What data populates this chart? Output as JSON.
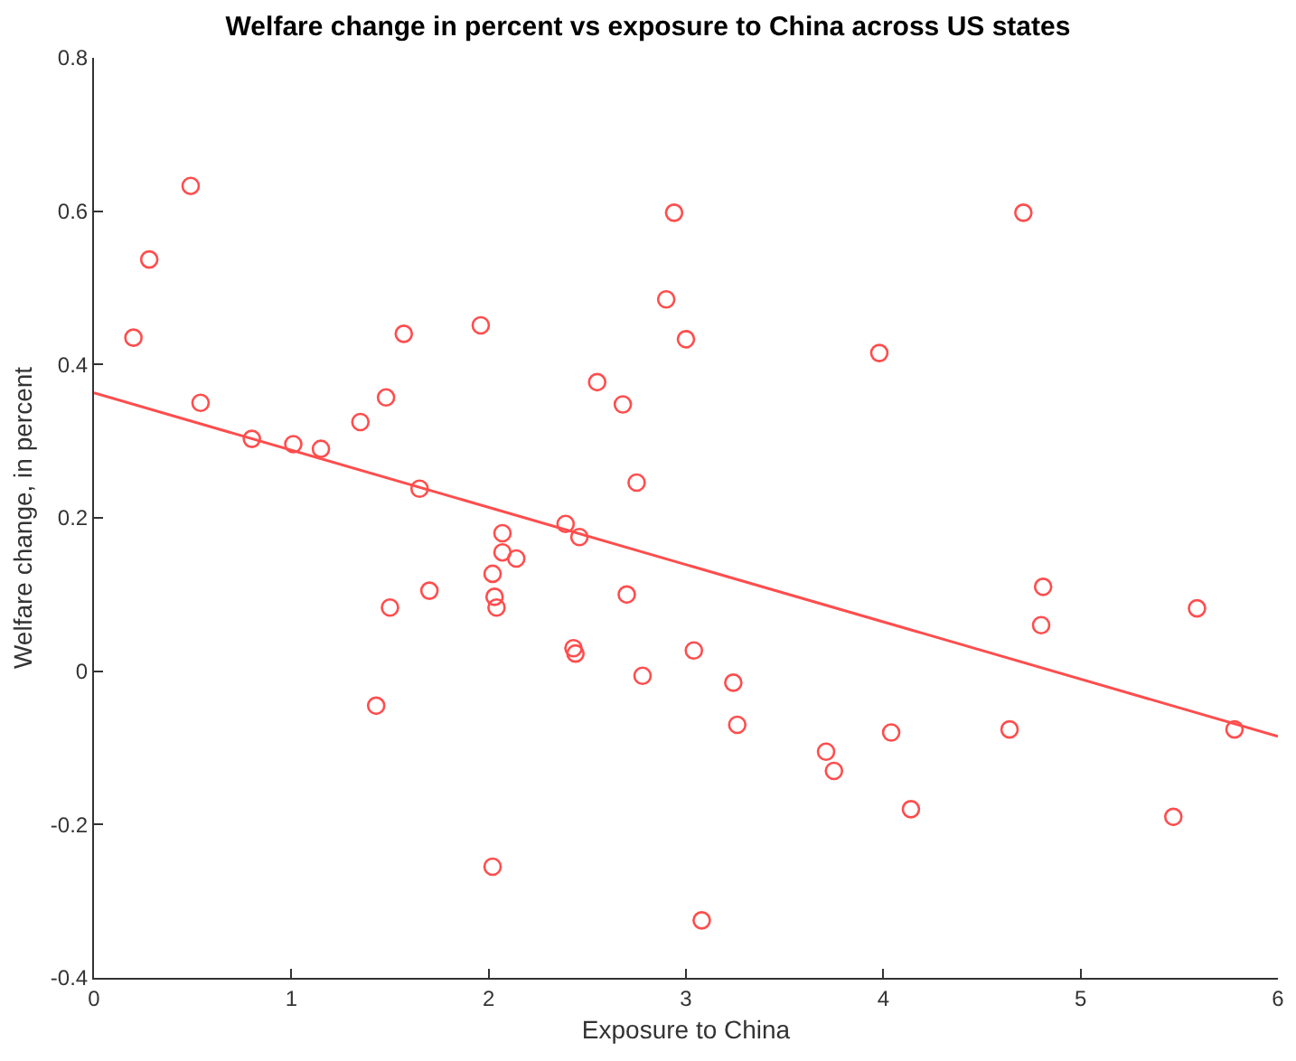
{
  "chart_data": {
    "type": "scatter",
    "title": "Welfare change in percent vs exposure to China across US states",
    "xlabel": "Exposure to China",
    "ylabel": "Welfare change, in percent",
    "xlim": [
      0,
      6
    ],
    "ylim": [
      -0.4,
      0.8
    ],
    "xticks": [
      0,
      1,
      2,
      3,
      4,
      5,
      6
    ],
    "yticks": [
      -0.4,
      -0.2,
      0,
      0.2,
      0.4,
      0.6,
      0.8
    ],
    "series": [
      {
        "marker": "circle",
        "color": "#ff4d4d",
        "x": [
          0.2,
          0.28,
          0.49,
          0.54,
          0.8,
          1.01,
          1.15,
          1.35,
          1.48,
          1.57,
          1.65,
          1.43,
          1.5,
          1.7,
          1.96,
          2.02,
          2.03,
          2.04,
          2.07,
          2.07,
          2.14,
          2.02,
          2.39,
          2.43,
          2.44,
          2.46,
          2.55,
          2.68,
          2.7,
          2.75,
          2.78,
          2.9,
          2.94,
          3.0,
          3.04,
          3.08,
          3.24,
          3.26,
          3.71,
          3.75,
          3.98,
          4.04,
          4.14,
          4.64,
          4.71,
          4.8,
          4.81,
          5.47,
          5.59,
          5.78
        ],
        "values": [
          0.435,
          0.537,
          0.633,
          0.35,
          0.303,
          0.296,
          0.29,
          0.325,
          0.357,
          0.44,
          0.238,
          -0.045,
          0.083,
          0.105,
          0.451,
          0.127,
          0.097,
          0.083,
          0.18,
          0.155,
          0.147,
          -0.255,
          0.192,
          0.03,
          0.023,
          0.175,
          0.377,
          0.348,
          0.1,
          0.246,
          -0.006,
          0.485,
          0.598,
          0.433,
          0.027,
          -0.325,
          -0.015,
          -0.07,
          -0.105,
          -0.13,
          0.415,
          -0.08,
          -0.18,
          -0.076,
          0.598,
          0.06,
          0.11,
          -0.19,
          0.082,
          -0.076
        ]
      },
      {
        "type": "line",
        "marker": "none",
        "color": "#ff4d4d",
        "x": [
          0,
          6
        ],
        "values": [
          0.363,
          -0.085
        ],
        "line_style": "solid"
      }
    ]
  }
}
